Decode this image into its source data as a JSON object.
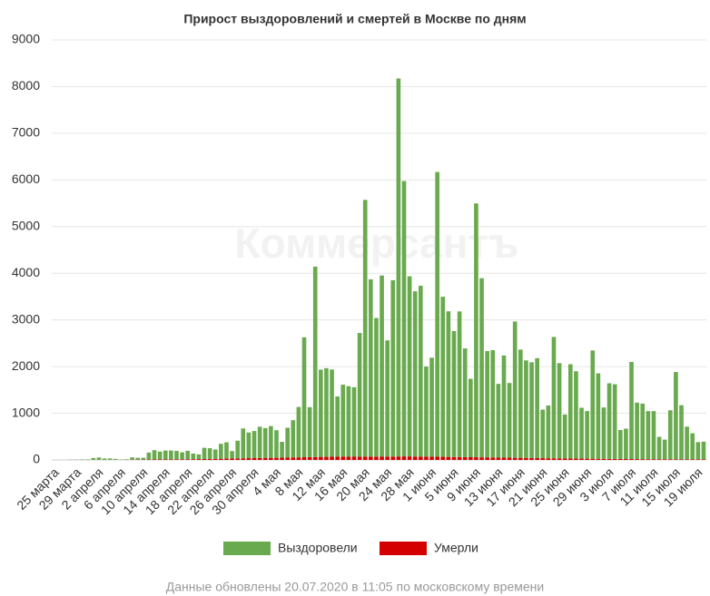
{
  "chart_data": {
    "type": "stacked_bar",
    "title": "Прирост выздоровлений и смертей в Москве по дням",
    "watermark": "Коммерсантъ",
    "footnote": "Данные обновлены 20.07.2020 в 11:05 по московскому времени",
    "categories": [
      "25 марта",
      null,
      null,
      null,
      "29 марта",
      null,
      null,
      null,
      "2 апреля",
      null,
      null,
      null,
      "6 апреля",
      null,
      null,
      null,
      "10 апреля",
      null,
      null,
      null,
      "14 апреля",
      null,
      null,
      null,
      "18 апреля",
      null,
      null,
      null,
      "22 апреля",
      null,
      null,
      null,
      "26 апреля",
      null,
      null,
      null,
      "30 апреля",
      null,
      null,
      null,
      "4 мая",
      null,
      null,
      null,
      "8 мая",
      null,
      null,
      null,
      "12 мая",
      null,
      null,
      null,
      "16 мая",
      null,
      null,
      null,
      "20 мая",
      null,
      null,
      null,
      "24 мая",
      null,
      null,
      null,
      "28 мая",
      null,
      null,
      null,
      "1 июня",
      null,
      null,
      null,
      "5 июня",
      null,
      null,
      null,
      "9 июня",
      null,
      null,
      null,
      "13 июня",
      null,
      null,
      null,
      "17 июня",
      null,
      null,
      null,
      "21 июня",
      null,
      null,
      null,
      "25 июня",
      null,
      null,
      null,
      "29 июня",
      null,
      null,
      null,
      "3 июля",
      null,
      null,
      null,
      "7 июля",
      null,
      null,
      null,
      "11 июля",
      null,
      null,
      null,
      "15 июля",
      null,
      null,
      null,
      "19 июля",
      null
    ],
    "series": [
      {
        "name": "Умерли",
        "color": "#d40000",
        "values": [
          0,
          0,
          0,
          0,
          1,
          1,
          1,
          1,
          2,
          2,
          2,
          3,
          3,
          4,
          5,
          6,
          7,
          8,
          9,
          10,
          11,
          12,
          13,
          14,
          15,
          16,
          18,
          20,
          22,
          24,
          26,
          28,
          30,
          32,
          35,
          38,
          40,
          42,
          44,
          45,
          46,
          48,
          50,
          52,
          55,
          58,
          60,
          62,
          65,
          66,
          68,
          70,
          72,
          70,
          68,
          70,
          72,
          70,
          71,
          73,
          72,
          70,
          74,
          76,
          75,
          73,
          72,
          70,
          71,
          69,
          67,
          65,
          63,
          62,
          60,
          58,
          57,
          55,
          54,
          52,
          50,
          49,
          48,
          46,
          45,
          43,
          42,
          40,
          38,
          36,
          35,
          34,
          32,
          31,
          30,
          28,
          27,
          26,
          25,
          24,
          23,
          22,
          21,
          20,
          19,
          18,
          17,
          16,
          16,
          15,
          15,
          14,
          14,
          13,
          13,
          12,
          12,
          11
        ]
      },
      {
        "name": "Выздоровели",
        "color": "#6aaa4f",
        "values": [
          0,
          0,
          0,
          5,
          5,
          10,
          10,
          40,
          50,
          30,
          30,
          20,
          5,
          10,
          50,
          40,
          40,
          150,
          200,
          170,
          190,
          190,
          180,
          150,
          180,
          120,
          100,
          240,
          230,
          200,
          320,
          350,
          160,
          380,
          640,
          550,
          580,
          670,
          640,
          680,
          590,
          340,
          640,
          800,
          1080,
          2570,
          1070,
          4080,
          1870,
          1900,
          1870,
          1290,
          1540,
          1510,
          1490,
          2650,
          5500,
          3800,
          2970,
          3880,
          2490,
          3780,
          8100,
          5900,
          3860,
          3540,
          3660,
          1930,
          2120,
          6100,
          3430,
          3120,
          2700,
          3120,
          2330,
          1680,
          5440,
          3840,
          2280,
          2300,
          1580,
          2190,
          1600,
          2920,
          2320,
          2090,
          2050,
          2140,
          1040,
          1130,
          2600,
          2040,
          940,
          2020,
          1870,
          1090,
          1020,
          2320,
          1830,
          1100,
          1620,
          1600,
          620,
          650,
          2080,
          1210,
          1190,
          1030,
          1030,
          480,
          420,
          1050,
          1870,
          1160,
          700,
          560,
          370,
          380
        ]
      }
    ],
    "legend_order": [
      1,
      0
    ],
    "ylim": [
      0,
      9000
    ],
    "yticks": [
      0,
      1000,
      2000,
      3000,
      4000,
      5000,
      6000,
      7000,
      8000,
      9000
    ],
    "grid": true
  }
}
